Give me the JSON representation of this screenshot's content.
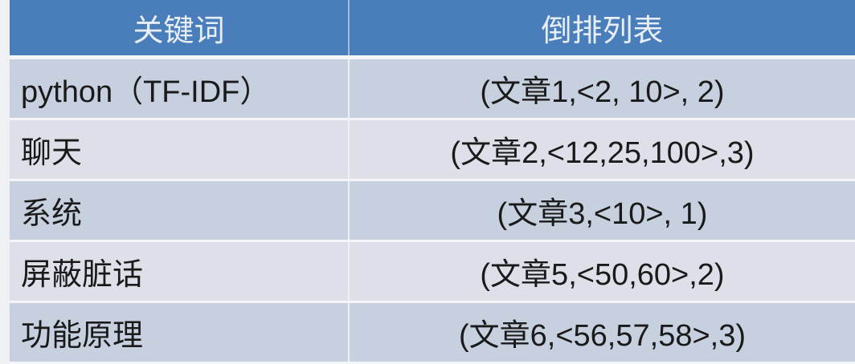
{
  "table": {
    "headers": [
      "关键词",
      "倒排列表"
    ],
    "rows": [
      {
        "keyword": "python（TF-IDF）",
        "postings": "(文章1,<2, 10>, 2)"
      },
      {
        "keyword": "聊天",
        "postings": "(文章2,<12,25,100>,3)"
      },
      {
        "keyword": "系统",
        "postings": "(文章3,<10>, 1)"
      },
      {
        "keyword": "屏蔽脏话",
        "postings": "(文章5,<50,60>,2)"
      },
      {
        "keyword": "功能原理",
        "postings": "(文章6,<56,57,58>,3)"
      }
    ]
  },
  "colors": {
    "header": "#4a7ebb",
    "row_odd": "#c7d0df",
    "row_even": "#dde0e8"
  }
}
